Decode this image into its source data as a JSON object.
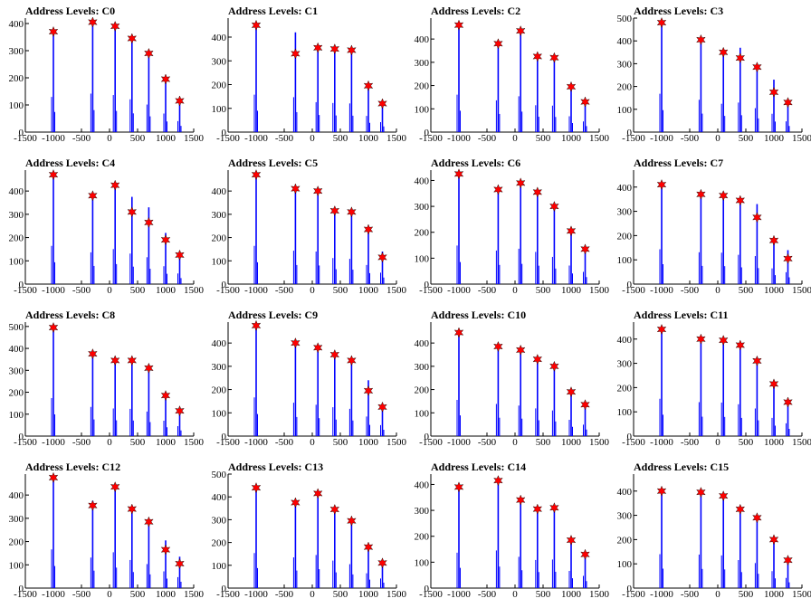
{
  "figure": {
    "panel_count": 16,
    "columns": 4
  },
  "style": {
    "peak_line": "#0000ff",
    "marker_fill": "#ff0000",
    "marker_stroke": "#000000"
  },
  "chart_data": [
    {
      "type": "bar",
      "title": "Address Levels: C0",
      "xlim": [
        -1500,
        1500
      ],
      "ylim": [
        0,
        420
      ],
      "xticks": [
        "-1500",
        "-1000",
        "-500",
        "0",
        "500",
        "1000",
        "1500"
      ],
      "yticks": [
        0,
        100,
        200,
        300,
        400
      ],
      "peaks": [
        {
          "x": -1000,
          "y": 370,
          "marker": 370
        },
        {
          "x": -300,
          "y": 405,
          "marker": 405
        },
        {
          "x": 100,
          "y": 390,
          "marker": 390
        },
        {
          "x": 400,
          "y": 345,
          "marker": 345
        },
        {
          "x": 700,
          "y": 290,
          "marker": 290
        },
        {
          "x": 1000,
          "y": 195,
          "marker": 195
        },
        {
          "x": 1250,
          "y": 115,
          "marker": 115
        }
      ]
    },
    {
      "type": "bar",
      "title": "Address Levels: C1",
      "xlim": [
        -1500,
        1500
      ],
      "ylim": [
        0,
        480
      ],
      "xticks": [
        "-1500",
        "-1000",
        "-500",
        "0",
        "500",
        "1000",
        "1500"
      ],
      "yticks": [
        0,
        100,
        200,
        300,
        400
      ],
      "peaks": [
        {
          "x": -1000,
          "y": 450,
          "marker": 450
        },
        {
          "x": -300,
          "y": 420,
          "marker": 330
        },
        {
          "x": 100,
          "y": 360,
          "marker": 355
        },
        {
          "x": 400,
          "y": 350,
          "marker": 350
        },
        {
          "x": 700,
          "y": 345,
          "marker": 345
        },
        {
          "x": 1000,
          "y": 195,
          "marker": 195
        },
        {
          "x": 1250,
          "y": 120,
          "marker": 120
        }
      ]
    },
    {
      "type": "bar",
      "title": "Address Levels: C2",
      "xlim": [
        -1500,
        1500
      ],
      "ylim": [
        0,
        490
      ],
      "xticks": [
        "-1500",
        "-1000",
        "-500",
        "0",
        "500",
        "1000",
        "1500"
      ],
      "yticks": [
        0,
        100,
        200,
        300,
        400
      ],
      "peaks": [
        {
          "x": -1000,
          "y": 460,
          "marker": 460
        },
        {
          "x": -300,
          "y": 390,
          "marker": 380
        },
        {
          "x": 100,
          "y": 440,
          "marker": 435
        },
        {
          "x": 400,
          "y": 330,
          "marker": 325
        },
        {
          "x": 700,
          "y": 325,
          "marker": 320
        },
        {
          "x": 1000,
          "y": 195,
          "marker": 195
        },
        {
          "x": 1250,
          "y": 130,
          "marker": 130
        }
      ]
    },
    {
      "type": "bar",
      "title": "Address Levels: C3",
      "xlim": [
        -1500,
        1500
      ],
      "ylim": [
        0,
        500
      ],
      "xticks": [
        "-1500",
        "-1000",
        "-500",
        "0",
        "500",
        "1000",
        "1500"
      ],
      "yticks": [
        0,
        100,
        200,
        300,
        400,
        500
      ],
      "peaks": [
        {
          "x": -1000,
          "y": 480,
          "marker": 480
        },
        {
          "x": -300,
          "y": 405,
          "marker": 405
        },
        {
          "x": 100,
          "y": 355,
          "marker": 350
        },
        {
          "x": 400,
          "y": 370,
          "marker": 325
        },
        {
          "x": 700,
          "y": 300,
          "marker": 285
        },
        {
          "x": 1000,
          "y": 230,
          "marker": 175
        },
        {
          "x": 1250,
          "y": 135,
          "marker": 130
        }
      ]
    },
    {
      "type": "bar",
      "title": "Address Levels: C4",
      "xlim": [
        -1500,
        1500
      ],
      "ylim": [
        0,
        490
      ],
      "xticks": [
        "-1500",
        "-1000",
        "-500",
        "0",
        "500",
        "1000",
        "1500"
      ],
      "yticks": [
        0,
        100,
        200,
        300,
        400
      ],
      "peaks": [
        {
          "x": -1000,
          "y": 470,
          "marker": 470
        },
        {
          "x": -300,
          "y": 390,
          "marker": 380
        },
        {
          "x": 100,
          "y": 430,
          "marker": 425
        },
        {
          "x": 400,
          "y": 375,
          "marker": 310
        },
        {
          "x": 700,
          "y": 330,
          "marker": 265
        },
        {
          "x": 1000,
          "y": 220,
          "marker": 190
        },
        {
          "x": 1250,
          "y": 130,
          "marker": 125
        }
      ]
    },
    {
      "type": "bar",
      "title": "Address Levels: C5",
      "xlim": [
        -1500,
        1500
      ],
      "ylim": [
        0,
        490
      ],
      "xticks": [
        "-1500",
        "-1000",
        "-500",
        "0",
        "500",
        "1000",
        "1500"
      ],
      "yticks": [
        0,
        100,
        200,
        300,
        400
      ],
      "peaks": [
        {
          "x": -1000,
          "y": 470,
          "marker": 470
        },
        {
          "x": -300,
          "y": 410,
          "marker": 410
        },
        {
          "x": 100,
          "y": 400,
          "marker": 400
        },
        {
          "x": 400,
          "y": 320,
          "marker": 315
        },
        {
          "x": 700,
          "y": 310,
          "marker": 310
        },
        {
          "x": 1000,
          "y": 235,
          "marker": 235
        },
        {
          "x": 1250,
          "y": 140,
          "marker": 115
        }
      ]
    },
    {
      "type": "bar",
      "title": "Address Levels: C6",
      "xlim": [
        -1500,
        1500
      ],
      "ylim": [
        0,
        440
      ],
      "xticks": [
        "-1500",
        "-1000",
        "-500",
        "0",
        "500",
        "1000",
        "1500"
      ],
      "yticks": [
        0,
        100,
        200,
        300,
        400
      ],
      "peaks": [
        {
          "x": -1000,
          "y": 425,
          "marker": 425
        },
        {
          "x": -300,
          "y": 370,
          "marker": 365
        },
        {
          "x": 100,
          "y": 390,
          "marker": 390
        },
        {
          "x": 400,
          "y": 355,
          "marker": 355
        },
        {
          "x": 700,
          "y": 300,
          "marker": 300
        },
        {
          "x": 1000,
          "y": 205,
          "marker": 205
        },
        {
          "x": 1250,
          "y": 135,
          "marker": 135
        }
      ]
    },
    {
      "type": "bar",
      "title": "Address Levels: C7",
      "xlim": [
        -1500,
        1500
      ],
      "ylim": [
        0,
        470
      ],
      "xticks": [
        "-1500",
        "-1000",
        "-500",
        "0",
        "500",
        "1000",
        "1500"
      ],
      "yticks": [
        0,
        100,
        200,
        300,
        400
      ],
      "peaks": [
        {
          "x": -1000,
          "y": 410,
          "marker": 410
        },
        {
          "x": -300,
          "y": 375,
          "marker": 370
        },
        {
          "x": 100,
          "y": 370,
          "marker": 365
        },
        {
          "x": 400,
          "y": 345,
          "marker": 345
        },
        {
          "x": 700,
          "y": 330,
          "marker": 275
        },
        {
          "x": 1000,
          "y": 185,
          "marker": 180
        },
        {
          "x": 1250,
          "y": 140,
          "marker": 105
        }
      ]
    },
    {
      "type": "bar",
      "title": "Address Levels: C8",
      "xlim": [
        -1500,
        1500
      ],
      "ylim": [
        0,
        520
      ],
      "xticks": [
        "-1500",
        "-1000",
        "-500",
        "0",
        "500",
        "1000",
        "1500"
      ],
      "yticks": [
        0,
        100,
        200,
        300,
        400,
        500
      ],
      "peaks": [
        {
          "x": -1000,
          "y": 495,
          "marker": 495
        },
        {
          "x": -300,
          "y": 380,
          "marker": 375
        },
        {
          "x": 100,
          "y": 360,
          "marker": 345
        },
        {
          "x": 400,
          "y": 355,
          "marker": 345
        },
        {
          "x": 700,
          "y": 320,
          "marker": 310
        },
        {
          "x": 1000,
          "y": 200,
          "marker": 185
        },
        {
          "x": 1250,
          "y": 130,
          "marker": 115
        }
      ]
    },
    {
      "type": "bar",
      "title": "Address Levels: C9",
      "xlim": [
        -1500,
        1500
      ],
      "ylim": [
        0,
        490
      ],
      "xticks": [
        "-1500",
        "-1000",
        "-500",
        "0",
        "500",
        "1000",
        "1500"
      ],
      "yticks": [
        0,
        100,
        200,
        300,
        400
      ],
      "peaks": [
        {
          "x": -1000,
          "y": 475,
          "marker": 475
        },
        {
          "x": -300,
          "y": 410,
          "marker": 400
        },
        {
          "x": 100,
          "y": 385,
          "marker": 380
        },
        {
          "x": 400,
          "y": 355,
          "marker": 350
        },
        {
          "x": 700,
          "y": 335,
          "marker": 325
        },
        {
          "x": 1000,
          "y": 240,
          "marker": 195
        },
        {
          "x": 1250,
          "y": 135,
          "marker": 125
        }
      ]
    },
    {
      "type": "bar",
      "title": "Address Levels: C10",
      "xlim": [
        -1500,
        1500
      ],
      "ylim": [
        0,
        490
      ],
      "xticks": [
        "-1500",
        "-1000",
        "-500",
        "0",
        "500",
        "1000",
        "1500"
      ],
      "yticks": [
        0,
        100,
        200,
        300,
        400
      ],
      "peaks": [
        {
          "x": -1000,
          "y": 445,
          "marker": 445
        },
        {
          "x": -300,
          "y": 395,
          "marker": 385
        },
        {
          "x": 100,
          "y": 375,
          "marker": 370
        },
        {
          "x": 400,
          "y": 340,
          "marker": 330
        },
        {
          "x": 700,
          "y": 315,
          "marker": 300
        },
        {
          "x": 1000,
          "y": 200,
          "marker": 190
        },
        {
          "x": 1250,
          "y": 140,
          "marker": 135
        }
      ]
    },
    {
      "type": "bar",
      "title": "Address Levels: C11",
      "xlim": [
        -1500,
        1500
      ],
      "ylim": [
        0,
        470
      ],
      "xticks": [
        "-1500",
        "-1000",
        "-500",
        "0",
        "500",
        "1000",
        "1500"
      ],
      "yticks": [
        0,
        100,
        200,
        300,
        400
      ],
      "peaks": [
        {
          "x": -1000,
          "y": 440,
          "marker": 440
        },
        {
          "x": -300,
          "y": 400,
          "marker": 400
        },
        {
          "x": 100,
          "y": 395,
          "marker": 395
        },
        {
          "x": 400,
          "y": 375,
          "marker": 375
        },
        {
          "x": 700,
          "y": 325,
          "marker": 310
        },
        {
          "x": 1000,
          "y": 215,
          "marker": 215
        },
        {
          "x": 1250,
          "y": 150,
          "marker": 140
        }
      ]
    },
    {
      "type": "bar",
      "title": "Address Levels: C12",
      "xlim": [
        -1500,
        1500
      ],
      "ylim": [
        0,
        490
      ],
      "xticks": [
        "-1500",
        "-1000",
        "-500",
        "0",
        "500",
        "1000",
        "1500"
      ],
      "yticks": [
        0,
        100,
        200,
        300,
        400
      ],
      "peaks": [
        {
          "x": -1000,
          "y": 475,
          "marker": 475
        },
        {
          "x": -300,
          "y": 375,
          "marker": 355
        },
        {
          "x": 100,
          "y": 440,
          "marker": 435
        },
        {
          "x": 400,
          "y": 345,
          "marker": 340
        },
        {
          "x": 700,
          "y": 295,
          "marker": 285
        },
        {
          "x": 1000,
          "y": 205,
          "marker": 165
        },
        {
          "x": 1250,
          "y": 135,
          "marker": 105
        }
      ]
    },
    {
      "type": "bar",
      "title": "Address Levels: C13",
      "xlim": [
        -1500,
        1500
      ],
      "ylim": [
        0,
        500
      ],
      "xticks": [
        "-1500",
        "-1000",
        "-500",
        "0",
        "500",
        "1000",
        "1500"
      ],
      "yticks": [
        0,
        100,
        200,
        300,
        400,
        500
      ],
      "peaks": [
        {
          "x": -1000,
          "y": 440,
          "marker": 440
        },
        {
          "x": -300,
          "y": 385,
          "marker": 375
        },
        {
          "x": 100,
          "y": 415,
          "marker": 415
        },
        {
          "x": 400,
          "y": 345,
          "marker": 345
        },
        {
          "x": 700,
          "y": 300,
          "marker": 295
        },
        {
          "x": 1000,
          "y": 185,
          "marker": 180
        },
        {
          "x": 1250,
          "y": 120,
          "marker": 110
        }
      ]
    },
    {
      "type": "bar",
      "title": "Address Levels: C14",
      "xlim": [
        -1500,
        1500
      ],
      "ylim": [
        0,
        440
      ],
      "xticks": [
        "-1500",
        "-1000",
        "-500",
        "0",
        "500",
        "1000",
        "1500"
      ],
      "yticks": [
        0,
        100,
        200,
        300,
        400
      ],
      "peaks": [
        {
          "x": -1000,
          "y": 390,
          "marker": 390
        },
        {
          "x": -300,
          "y": 415,
          "marker": 415
        },
        {
          "x": 100,
          "y": 345,
          "marker": 340
        },
        {
          "x": 400,
          "y": 310,
          "marker": 305
        },
        {
          "x": 700,
          "y": 315,
          "marker": 310
        },
        {
          "x": 1000,
          "y": 190,
          "marker": 185
        },
        {
          "x": 1250,
          "y": 135,
          "marker": 130
        }
      ]
    },
    {
      "type": "bar",
      "title": "Address Levels: C15",
      "xlim": [
        -1500,
        1500
      ],
      "ylim": [
        0,
        470
      ],
      "xticks": [
        "-1500",
        "-1000",
        "-500",
        "0",
        "500",
        "1000",
        "1500"
      ],
      "yticks": [
        0,
        100,
        200,
        300,
        400
      ],
      "peaks": [
        {
          "x": -1000,
          "y": 400,
          "marker": 400
        },
        {
          "x": -300,
          "y": 395,
          "marker": 395
        },
        {
          "x": 100,
          "y": 385,
          "marker": 380
        },
        {
          "x": 400,
          "y": 330,
          "marker": 325
        },
        {
          "x": 700,
          "y": 295,
          "marker": 290
        },
        {
          "x": 1000,
          "y": 200,
          "marker": 200
        },
        {
          "x": 1250,
          "y": 120,
          "marker": 115
        }
      ]
    }
  ]
}
